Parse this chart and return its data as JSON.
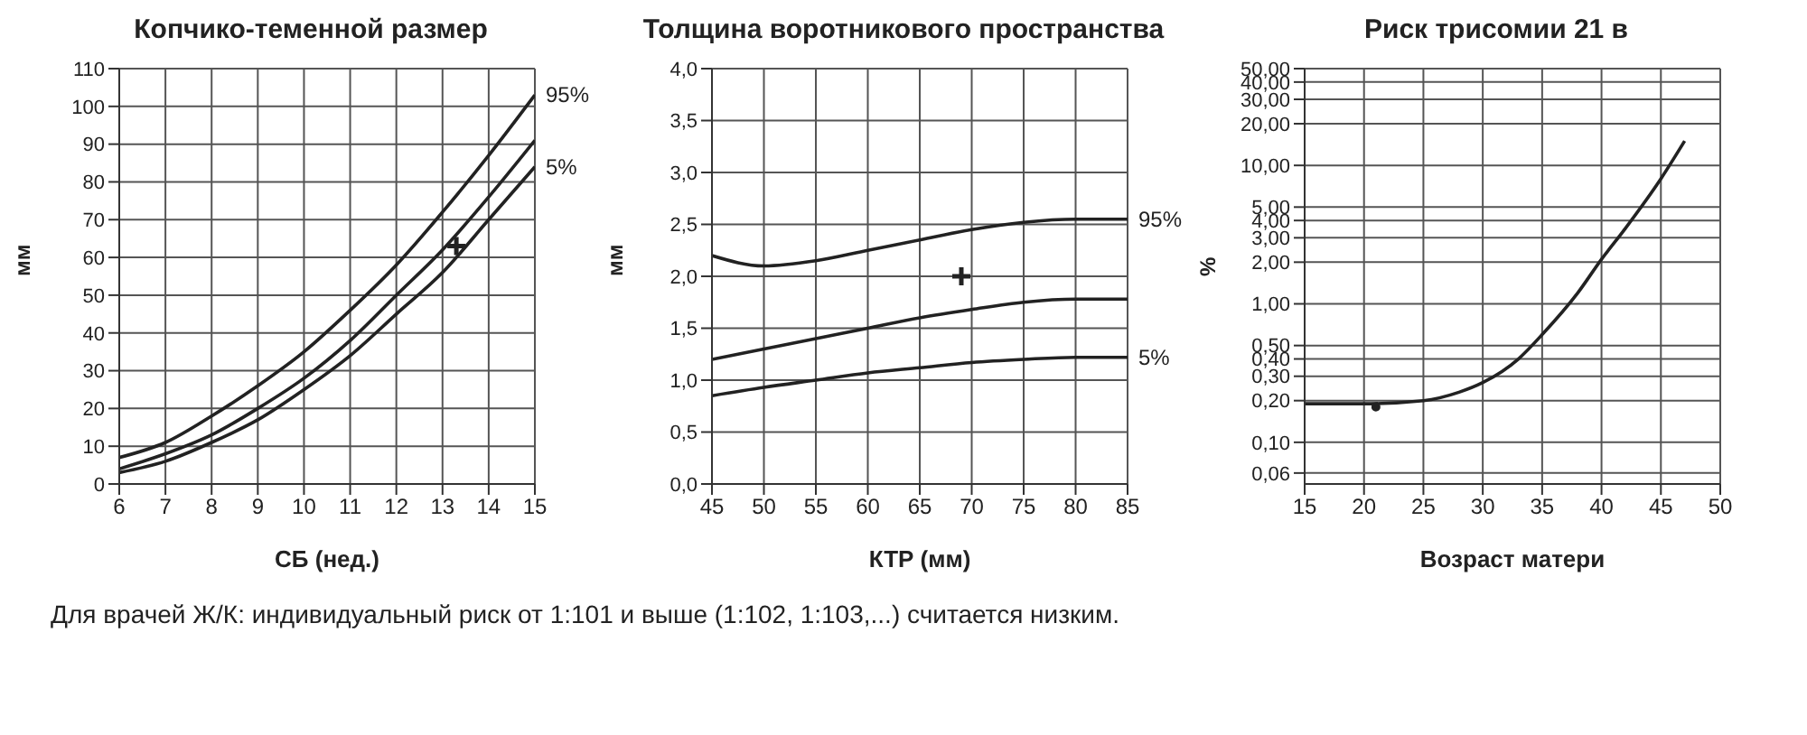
{
  "chart_data": [
    {
      "type": "line",
      "title": "Копчико-теменной размер",
      "xlabel": "СБ (нед.)",
      "ylabel": "мм",
      "x": [
        6,
        7,
        8,
        9,
        10,
        11,
        12,
        13,
        14,
        15
      ],
      "xlim": [
        6,
        15
      ],
      "xticks": [
        6,
        7,
        8,
        9,
        10,
        11,
        12,
        13,
        14,
        15
      ],
      "ylim": [
        0,
        110
      ],
      "yticks": [
        0,
        10,
        20,
        30,
        40,
        50,
        60,
        70,
        80,
        90,
        100,
        110
      ],
      "grid": true,
      "series": [
        {
          "name": "95%",
          "color": "#222222",
          "values": [
            7,
            11,
            18,
            26,
            35,
            46,
            58,
            72,
            87,
            103
          ]
        },
        {
          "color": "#222222",
          "values": [
            4,
            8,
            13,
            20,
            28,
            38,
            50,
            62,
            76,
            91
          ]
        },
        {
          "name": "5%",
          "color": "#222222",
          "values": [
            3,
            6,
            11,
            17,
            25,
            34,
            45,
            56,
            70,
            84
          ]
        },
        {
          "type": "scatter",
          "color": "#222222",
          "marker": "cross",
          "x": [
            13.3
          ],
          "values": [
            63
          ]
        }
      ],
      "annotations": [
        "Для врачей Ж/К: индивидуальный риск от 1:101 и выше (1:102, 1:103,...) считается низким."
      ]
    },
    {
      "type": "line",
      "title": "Толщина воротникового пространства",
      "xlabel": "КТР (мм)",
      "ylabel": "мм",
      "x": [
        45,
        50,
        55,
        60,
        65,
        70,
        75,
        80,
        85
      ],
      "xlim": [
        45,
        85
      ],
      "xticks": [
        45,
        50,
        55,
        60,
        65,
        70,
        75,
        80,
        85
      ],
      "ylim": [
        0,
        4
      ],
      "yticks": [
        {
          "value": 0,
          "label": "0,0"
        },
        {
          "value": 0.5,
          "label": "0,5"
        },
        {
          "value": 1,
          "label": "1,0"
        },
        {
          "value": 1.5,
          "label": "1,5"
        },
        {
          "value": 2,
          "label": "2,0"
        },
        {
          "value": 2.5,
          "label": "2,5"
        },
        {
          "value": 3,
          "label": "3,0"
        },
        {
          "value": 3.5,
          "label": "3,5"
        },
        {
          "value": 4,
          "label": "4,0"
        }
      ],
      "grid": true,
      "series": [
        {
          "name": "95%",
          "color": "#222222",
          "values": [
            2.2,
            2.1,
            2.15,
            2.25,
            2.35,
            2.45,
            2.52,
            2.55,
            2.55
          ]
        },
        {
          "color": "#222222",
          "values": [
            1.2,
            1.3,
            1.4,
            1.5,
            1.6,
            1.68,
            1.75,
            1.78,
            1.78
          ]
        },
        {
          "name": "5%",
          "color": "#222222",
          "values": [
            0.85,
            0.93,
            1.0,
            1.07,
            1.12,
            1.17,
            1.2,
            1.22,
            1.22
          ]
        },
        {
          "type": "scatter",
          "color": "#222222",
          "marker": "cross",
          "x": [
            69
          ],
          "values": [
            2.0
          ]
        }
      ]
    },
    {
      "type": "line",
      "title": "Риск трисомии 21 в",
      "xlabel": "Возраст матери",
      "ylabel": "%",
      "log": "y",
      "x": [
        15,
        20,
        25,
        28,
        30,
        33,
        35,
        38,
        40,
        42,
        45,
        47
      ],
      "xlim": [
        15,
        50
      ],
      "xticks": [
        15,
        20,
        25,
        30,
        35,
        40,
        45,
        50
      ],
      "ylim": [
        0.05,
        50
      ],
      "yticks": [
        {
          "value": 0.06,
          "label": "0,06"
        },
        {
          "value": 0.1,
          "label": "0,10"
        },
        {
          "value": 0.2,
          "label": "0,20"
        },
        {
          "value": 0.3,
          "label": "0,30"
        },
        {
          "value": 0.4,
          "label": "0,40"
        },
        {
          "value": 0.5,
          "label": "0,50"
        },
        {
          "value": 1,
          "label": "1,00"
        },
        {
          "value": 2,
          "label": "2,00"
        },
        {
          "value": 3,
          "label": "3,00"
        },
        {
          "value": 4,
          "label": "4,00"
        },
        {
          "value": 5,
          "label": "5,00"
        },
        {
          "value": 10,
          "label": "10,00"
        },
        {
          "value": 20,
          "label": "20,00"
        },
        {
          "value": 30,
          "label": "30,00"
        },
        {
          "value": 40,
          "label": "40,00"
        },
        {
          "value": 50,
          "label": "50,00"
        }
      ],
      "grid": true,
      "series": [
        {
          "color": "#222222",
          "values": [
            0.19,
            0.19,
            0.2,
            0.23,
            0.27,
            0.4,
            0.6,
            1.2,
            2.1,
            3.5,
            8,
            15
          ]
        },
        {
          "type": "scatter",
          "color": "#222222",
          "marker": "circle",
          "x": [
            21
          ],
          "values": [
            0.18
          ]
        }
      ]
    }
  ]
}
